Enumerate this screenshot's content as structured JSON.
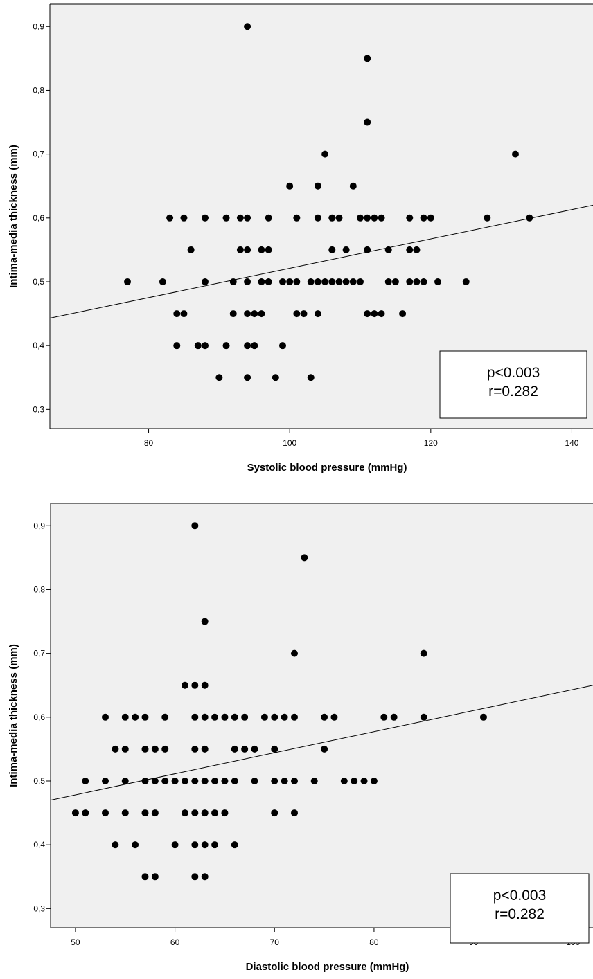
{
  "chart_data": [
    {
      "type": "scatter",
      "xlabel": "Systolic blood pressure (mmHg)",
      "ylabel": "Intima-media thickness (mm)",
      "xlim": [
        66,
        143
      ],
      "ylim": [
        0.27,
        0.935
      ],
      "xticks": [
        {
          "v": 80,
          "label": "80"
        },
        {
          "v": 100,
          "label": "100"
        },
        {
          "v": 120,
          "label": "120"
        },
        {
          "v": 140,
          "label": "140"
        }
      ],
      "yticks": [
        {
          "v": 0.3,
          "label": "0,3"
        },
        {
          "v": 0.4,
          "label": "0,4"
        },
        {
          "v": 0.5,
          "label": "0,5"
        },
        {
          "v": 0.6,
          "label": "0,6"
        },
        {
          "v": 0.7,
          "label": "0,7"
        },
        {
          "v": 0.8,
          "label": "0,8"
        },
        {
          "v": 0.9,
          "label": "0,9"
        }
      ],
      "background": "#f0f0f0",
      "point_color": "#000000",
      "grid": false,
      "fit_line": {
        "x": [
          66,
          143
        ],
        "y": [
          0.443,
          0.62
        ]
      },
      "annotation": {
        "lines": [
          "p<0.003",
          "r=0.282"
        ],
        "position": "bottom-right"
      },
      "points": [
        [
          94,
          0.9
        ],
        [
          111,
          0.85
        ],
        [
          111,
          0.75
        ],
        [
          105,
          0.7
        ],
        [
          132,
          0.7
        ],
        [
          100,
          0.65
        ],
        [
          104,
          0.65
        ],
        [
          109,
          0.65
        ],
        [
          83,
          0.6
        ],
        [
          85,
          0.6
        ],
        [
          88,
          0.6
        ],
        [
          91,
          0.6
        ],
        [
          93,
          0.6
        ],
        [
          94,
          0.6
        ],
        [
          97,
          0.6
        ],
        [
          101,
          0.6
        ],
        [
          104,
          0.6
        ],
        [
          106,
          0.6
        ],
        [
          107,
          0.6
        ],
        [
          110,
          0.6
        ],
        [
          111,
          0.6
        ],
        [
          112,
          0.6
        ],
        [
          113,
          0.6
        ],
        [
          117,
          0.6
        ],
        [
          119,
          0.6
        ],
        [
          120,
          0.6
        ],
        [
          128,
          0.6
        ],
        [
          134,
          0.6
        ],
        [
          86,
          0.55
        ],
        [
          93,
          0.55
        ],
        [
          94,
          0.55
        ],
        [
          96,
          0.55
        ],
        [
          97,
          0.55
        ],
        [
          106,
          0.55
        ],
        [
          108,
          0.55
        ],
        [
          111,
          0.55
        ],
        [
          114,
          0.55
        ],
        [
          117,
          0.55
        ],
        [
          118,
          0.55
        ],
        [
          77,
          0.5
        ],
        [
          82,
          0.5
        ],
        [
          88,
          0.5
        ],
        [
          92,
          0.5
        ],
        [
          94,
          0.5
        ],
        [
          96,
          0.5
        ],
        [
          97,
          0.5
        ],
        [
          99,
          0.5
        ],
        [
          100,
          0.5
        ],
        [
          101,
          0.5
        ],
        [
          103,
          0.5
        ],
        [
          104,
          0.5
        ],
        [
          105,
          0.5
        ],
        [
          106,
          0.5
        ],
        [
          107,
          0.5
        ],
        [
          108,
          0.5
        ],
        [
          109,
          0.5
        ],
        [
          110,
          0.5
        ],
        [
          114,
          0.5
        ],
        [
          115,
          0.5
        ],
        [
          117,
          0.5
        ],
        [
          118,
          0.5
        ],
        [
          119,
          0.5
        ],
        [
          121,
          0.5
        ],
        [
          125,
          0.5
        ],
        [
          84,
          0.45
        ],
        [
          85,
          0.45
        ],
        [
          92,
          0.45
        ],
        [
          94,
          0.45
        ],
        [
          95,
          0.45
        ],
        [
          96,
          0.45
        ],
        [
          101,
          0.45
        ],
        [
          102,
          0.45
        ],
        [
          104,
          0.45
        ],
        [
          111,
          0.45
        ],
        [
          112,
          0.45
        ],
        [
          113,
          0.45
        ],
        [
          116,
          0.45
        ],
        [
          84,
          0.4
        ],
        [
          87,
          0.4
        ],
        [
          88,
          0.4
        ],
        [
          91,
          0.4
        ],
        [
          94,
          0.4
        ],
        [
          95,
          0.4
        ],
        [
          99,
          0.4
        ],
        [
          90,
          0.35
        ],
        [
          94,
          0.35
        ],
        [
          98,
          0.35
        ],
        [
          103,
          0.35
        ]
      ]
    },
    {
      "type": "scatter",
      "xlabel": "Diastolic blood pressure (mmHg)",
      "ylabel": "Intima-media thickness (mm)",
      "xlim": [
        47.5,
        102
      ],
      "ylim": [
        0.27,
        0.935
      ],
      "xticks": [
        {
          "v": 50,
          "label": "50"
        },
        {
          "v": 60,
          "label": "60"
        },
        {
          "v": 70,
          "label": "70"
        },
        {
          "v": 80,
          "label": "80"
        },
        {
          "v": 90,
          "label": "90"
        },
        {
          "v": 100,
          "label": "100"
        }
      ],
      "yticks": [
        {
          "v": 0.3,
          "label": "0,3"
        },
        {
          "v": 0.4,
          "label": "0,4"
        },
        {
          "v": 0.5,
          "label": "0,5"
        },
        {
          "v": 0.6,
          "label": "0,6"
        },
        {
          "v": 0.7,
          "label": "0,7"
        },
        {
          "v": 0.8,
          "label": "0,8"
        },
        {
          "v": 0.9,
          "label": "0,9"
        }
      ],
      "background": "#f0f0f0",
      "point_color": "#000000",
      "grid": false,
      "fit_line": {
        "x": [
          47.5,
          102
        ],
        "y": [
          0.47,
          0.65
        ]
      },
      "annotation": {
        "lines": [
          "p<0.003",
          "r=0.282"
        ],
        "position": "bottom-right"
      },
      "points": [
        [
          62,
          0.9
        ],
        [
          73,
          0.85
        ],
        [
          63,
          0.75
        ],
        [
          72,
          0.7
        ],
        [
          85,
          0.7
        ],
        [
          61,
          0.65
        ],
        [
          62,
          0.65
        ],
        [
          63,
          0.65
        ],
        [
          53,
          0.6
        ],
        [
          55,
          0.6
        ],
        [
          56,
          0.6
        ],
        [
          57,
          0.6
        ],
        [
          59,
          0.6
        ],
        [
          62,
          0.6
        ],
        [
          63,
          0.6
        ],
        [
          64,
          0.6
        ],
        [
          65,
          0.6
        ],
        [
          66,
          0.6
        ],
        [
          67,
          0.6
        ],
        [
          69,
          0.6
        ],
        [
          70,
          0.6
        ],
        [
          71,
          0.6
        ],
        [
          72,
          0.6
        ],
        [
          75,
          0.6
        ],
        [
          76,
          0.6
        ],
        [
          81,
          0.6
        ],
        [
          82,
          0.6
        ],
        [
          85,
          0.6
        ],
        [
          91,
          0.6
        ],
        [
          54,
          0.55
        ],
        [
          55,
          0.55
        ],
        [
          57,
          0.55
        ],
        [
          58,
          0.55
        ],
        [
          59,
          0.55
        ],
        [
          62,
          0.55
        ],
        [
          63,
          0.55
        ],
        [
          66,
          0.55
        ],
        [
          67,
          0.55
        ],
        [
          68,
          0.55
        ],
        [
          70,
          0.55
        ],
        [
          75,
          0.55
        ],
        [
          51,
          0.5
        ],
        [
          53,
          0.5
        ],
        [
          55,
          0.5
        ],
        [
          57,
          0.5
        ],
        [
          58,
          0.5
        ],
        [
          59,
          0.5
        ],
        [
          60,
          0.5
        ],
        [
          61,
          0.5
        ],
        [
          62,
          0.5
        ],
        [
          63,
          0.5
        ],
        [
          64,
          0.5
        ],
        [
          65,
          0.5
        ],
        [
          66,
          0.5
        ],
        [
          68,
          0.5
        ],
        [
          70,
          0.5
        ],
        [
          71,
          0.5
        ],
        [
          72,
          0.5
        ],
        [
          74,
          0.5
        ],
        [
          77,
          0.5
        ],
        [
          78,
          0.5
        ],
        [
          79,
          0.5
        ],
        [
          80,
          0.5
        ],
        [
          50,
          0.45
        ],
        [
          51,
          0.45
        ],
        [
          53,
          0.45
        ],
        [
          55,
          0.45
        ],
        [
          57,
          0.45
        ],
        [
          58,
          0.45
        ],
        [
          61,
          0.45
        ],
        [
          62,
          0.45
        ],
        [
          63,
          0.45
        ],
        [
          64,
          0.45
        ],
        [
          65,
          0.45
        ],
        [
          70,
          0.45
        ],
        [
          72,
          0.45
        ],
        [
          54,
          0.4
        ],
        [
          56,
          0.4
        ],
        [
          60,
          0.4
        ],
        [
          62,
          0.4
        ],
        [
          63,
          0.4
        ],
        [
          64,
          0.4
        ],
        [
          66,
          0.4
        ],
        [
          57,
          0.35
        ],
        [
          58,
          0.35
        ],
        [
          62,
          0.35
        ],
        [
          63,
          0.35
        ]
      ]
    }
  ]
}
